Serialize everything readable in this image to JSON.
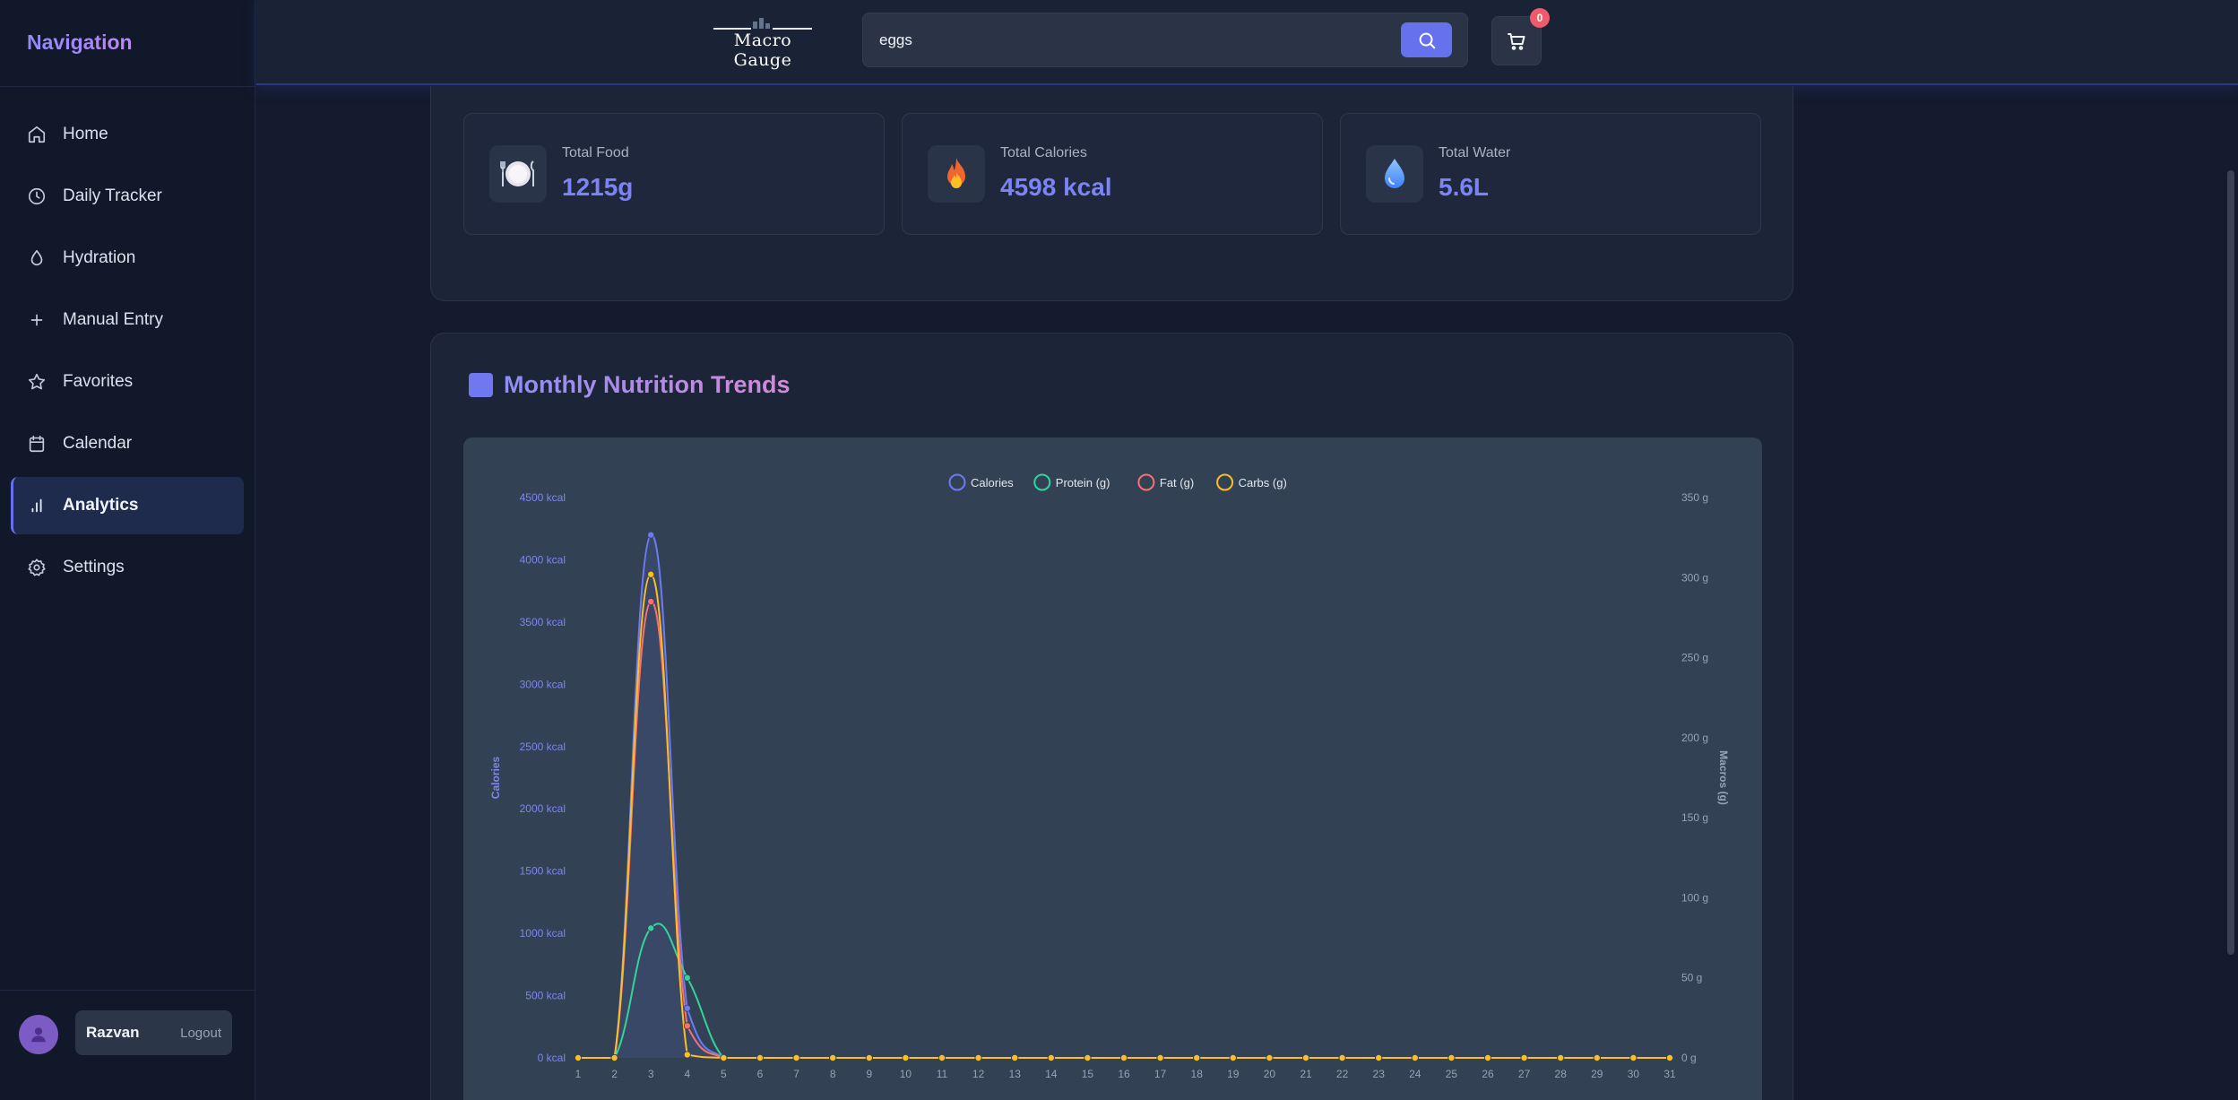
{
  "sidebar": {
    "title": "Navigation",
    "items": [
      {
        "label": "Home",
        "icon": "home-icon"
      },
      {
        "label": "Daily Tracker",
        "icon": "clock-icon"
      },
      {
        "label": "Hydration",
        "icon": "droplet-icon"
      },
      {
        "label": "Manual Entry",
        "icon": "plus-icon"
      },
      {
        "label": "Favorites",
        "icon": "star-icon"
      },
      {
        "label": "Calendar",
        "icon": "calendar-icon"
      },
      {
        "label": "Analytics",
        "icon": "bar-chart-icon",
        "active": true
      },
      {
        "label": "Settings",
        "icon": "gear-icon"
      }
    ],
    "user": {
      "name": "Razvan",
      "logout_label": "Logout"
    }
  },
  "header": {
    "logo_text": "Macro Gauge",
    "search": {
      "value": "eggs"
    },
    "cart_count": "0"
  },
  "summary": [
    {
      "label": "Total Food",
      "value": "1215g",
      "icon": "plate-icon"
    },
    {
      "label": "Total Calories",
      "value": "4598 kcal",
      "icon": "fire-icon"
    },
    {
      "label": "Total Water",
      "value": "5.6L",
      "icon": "water-drop-icon"
    }
  ],
  "trends": {
    "title": "Monthly Nutrition Trends"
  },
  "colors": {
    "accent": "#6571ed",
    "calories": "#6b7cf2",
    "protein": "#34d399",
    "fat": "#f87171",
    "carbs": "#fbbf24"
  },
  "chart_data": {
    "type": "line",
    "title": "",
    "x": [
      1,
      2,
      3,
      4,
      5,
      6,
      7,
      8,
      9,
      10,
      11,
      12,
      13,
      14,
      15,
      16,
      17,
      18,
      19,
      20,
      21,
      22,
      23,
      24,
      25,
      26,
      27,
      28,
      29,
      30,
      31
    ],
    "ylabel": "Calories",
    "y2label": "Macros (g)",
    "ylim": [
      0,
      4500
    ],
    "y2lim": [
      0,
      350
    ],
    "y_ticks": [
      "0 kcal",
      "500 kcal",
      "1000 kcal",
      "1500 kcal",
      "2000 kcal",
      "2500 kcal",
      "3000 kcal",
      "3500 kcal",
      "4000 kcal",
      "4500 kcal"
    ],
    "y2_ticks": [
      "0 g",
      "50 g",
      "100 g",
      "150 g",
      "200 g",
      "250 g",
      "300 g",
      "350 g"
    ],
    "legend_position": "top",
    "grid": false,
    "series": [
      {
        "name": "Calories",
        "axis": "left",
        "color": "#6b7cf2",
        "values": [
          0,
          0,
          4200,
          398,
          0,
          0,
          0,
          0,
          0,
          0,
          0,
          0,
          0,
          0,
          0,
          0,
          0,
          0,
          0,
          0,
          0,
          0,
          0,
          0,
          0,
          0,
          0,
          0,
          0,
          0,
          0
        ]
      },
      {
        "name": "Protein (g)",
        "axis": "right",
        "color": "#34d399",
        "values": [
          0,
          0,
          81,
          50,
          0,
          0,
          0,
          0,
          0,
          0,
          0,
          0,
          0,
          0,
          0,
          0,
          0,
          0,
          0,
          0,
          0,
          0,
          0,
          0,
          0,
          0,
          0,
          0,
          0,
          0,
          0
        ]
      },
      {
        "name": "Fat (g)",
        "axis": "right",
        "color": "#f87171",
        "values": [
          0,
          0,
          285,
          20,
          0,
          0,
          0,
          0,
          0,
          0,
          0,
          0,
          0,
          0,
          0,
          0,
          0,
          0,
          0,
          0,
          0,
          0,
          0,
          0,
          0,
          0,
          0,
          0,
          0,
          0,
          0
        ]
      },
      {
        "name": "Carbs (g)",
        "axis": "right",
        "color": "#fbbf24",
        "values": [
          0,
          0,
          302,
          2,
          0,
          0,
          0,
          0,
          0,
          0,
          0,
          0,
          0,
          0,
          0,
          0,
          0,
          0,
          0,
          0,
          0,
          0,
          0,
          0,
          0,
          0,
          0,
          0,
          0,
          0,
          0
        ]
      }
    ]
  }
}
